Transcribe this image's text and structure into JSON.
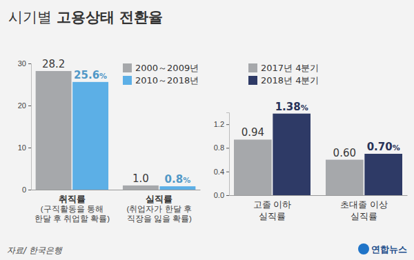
{
  "title": "시기별 고용상태 전환율",
  "source": "자료/ 한국은행",
  "credit": "연합뉴스",
  "chart_data": [
    {
      "type": "bar",
      "categories": [
        "취직률\n(구직활동을 통해\n한달 후 취업할 확률)",
        "실직률\n(취업자가 한달 후\n직장을 잃을 확률)"
      ],
      "series": [
        {
          "name": "2000～2009년",
          "color": "#a6a8ab",
          "values": [
            28.2,
            1.0
          ],
          "value_labels": [
            "28.2",
            "1.0"
          ]
        },
        {
          "name": "2010～2018년",
          "color": "#5cafe6",
          "values": [
            25.6,
            0.8
          ],
          "value_labels": [
            "25.6%",
            "0.8%"
          ]
        }
      ],
      "ylim": [
        0,
        30
      ],
      "yticks": [
        0,
        10,
        20,
        30
      ],
      "grid": false,
      "data_labels": true,
      "legend": "upper right"
    },
    {
      "type": "bar",
      "categories": [
        "고졸 이하\n실직률",
        "초대졸 이상\n실직률"
      ],
      "series": [
        {
          "name": "2017년 4분기",
          "color": "#a6a8ab",
          "values": [
            0.94,
            0.6
          ],
          "value_labels": [
            "0.94",
            "0.60"
          ]
        },
        {
          "name": "2018년 4분기",
          "color": "#2e3a66",
          "values": [
            1.38,
            0.7
          ],
          "value_labels": [
            "1.38%",
            "0.70%"
          ]
        }
      ],
      "ylim": [
        0,
        1.4
      ],
      "yticks": [
        {
          "value": 0,
          "label": "0.0"
        },
        0.4,
        0.8,
        1.2
      ],
      "grid": false,
      "data_labels": true,
      "legend": "upper left"
    }
  ]
}
